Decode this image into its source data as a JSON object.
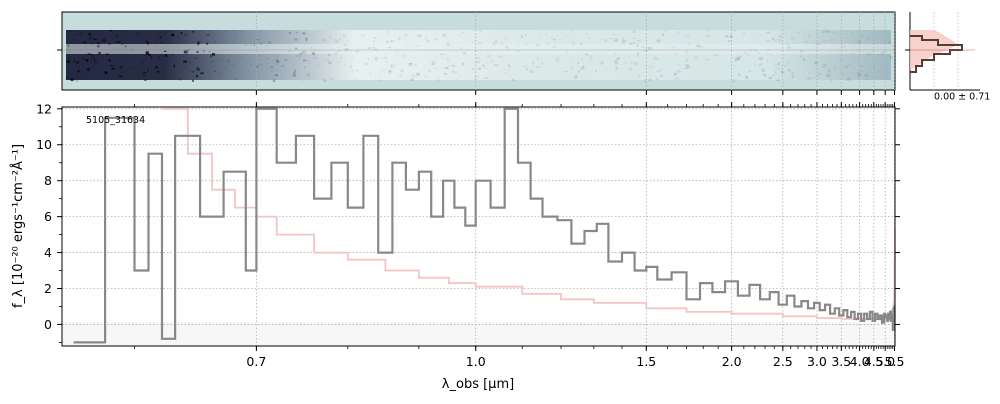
{
  "chart_data": {
    "type": "line",
    "object_id": "5105_31634",
    "ylabel": "f_λ [10⁻²⁰ ergs⁻¹cm⁻²Å⁻¹]",
    "xlabel": "λ_obs [μm]",
    "ylim": [
      -1.2,
      12.1
    ],
    "xlim": [
      0.553,
      5.53
    ],
    "x_ticks": [
      {
        "value": 0.7,
        "label": "0.7"
      },
      {
        "value": 1.0,
        "label": "1.0"
      },
      {
        "value": 1.5,
        "label": "1.5"
      },
      {
        "value": 2.0,
        "label": "2.0"
      },
      {
        "value": 2.5,
        "label": "2.5"
      },
      {
        "value": 3.0,
        "label": "3.0"
      },
      {
        "value": 3.5,
        "label": "3.5"
      },
      {
        "value": 4.0,
        "label": "4.0"
      },
      {
        "value": 4.5,
        "label": "4.5"
      },
      {
        "value": 5.0,
        "label": "5.0"
      },
      {
        "value": 5.5,
        "label": "5.5"
      }
    ],
    "y_ticks": [
      {
        "value": 0,
        "label": "0"
      },
      {
        "value": 2,
        "label": "2"
      },
      {
        "value": 4,
        "label": "4"
      },
      {
        "value": 6,
        "label": "6"
      },
      {
        "value": 8,
        "label": "8"
      },
      {
        "value": 10,
        "label": "10"
      },
      {
        "value": 12,
        "label": "12"
      }
    ],
    "grid": true,
    "series": [
      {
        "style": "step",
        "color": "#888888",
        "points": [
          [
            0.56,
            -1.0
          ],
          [
            0.58,
            11.5
          ],
          [
            0.6,
            3.0
          ],
          [
            0.61,
            9.5
          ],
          [
            0.62,
            -0.8
          ],
          [
            0.63,
            10.5
          ],
          [
            0.65,
            6.0
          ],
          [
            0.67,
            8.5
          ],
          [
            0.69,
            3.0
          ],
          [
            0.7,
            12.0
          ],
          [
            0.72,
            9.0
          ],
          [
            0.74,
            10.5
          ],
          [
            0.76,
            7.0
          ],
          [
            0.78,
            9.0
          ],
          [
            0.8,
            6.5
          ],
          [
            0.82,
            10.5
          ],
          [
            0.84,
            4.0
          ],
          [
            0.86,
            9.0
          ],
          [
            0.88,
            7.5
          ],
          [
            0.9,
            8.5
          ],
          [
            0.92,
            6.0
          ],
          [
            0.94,
            8.0
          ],
          [
            0.96,
            6.5
          ],
          [
            0.98,
            5.5
          ],
          [
            1.0,
            8.0
          ],
          [
            1.03,
            6.5
          ],
          [
            1.06,
            12.0
          ],
          [
            1.09,
            9.0
          ],
          [
            1.12,
            7.0
          ],
          [
            1.15,
            6.0
          ],
          [
            1.19,
            5.8
          ],
          [
            1.23,
            4.5
          ],
          [
            1.27,
            5.2
          ],
          [
            1.31,
            5.6
          ],
          [
            1.35,
            3.5
          ],
          [
            1.4,
            4.0
          ],
          [
            1.45,
            3.0
          ],
          [
            1.5,
            3.2
          ],
          [
            1.55,
            2.5
          ],
          [
            1.62,
            2.9
          ],
          [
            1.7,
            1.4
          ],
          [
            1.78,
            2.3
          ],
          [
            1.86,
            1.8
          ],
          [
            1.95,
            2.4
          ],
          [
            2.05,
            1.6
          ],
          [
            2.15,
            2.2
          ],
          [
            2.25,
            1.4
          ],
          [
            2.35,
            1.8
          ],
          [
            2.45,
            1.1
          ],
          [
            2.55,
            1.6
          ],
          [
            2.65,
            1.0
          ],
          [
            2.75,
            1.3
          ],
          [
            2.85,
            0.9
          ],
          [
            2.95,
            1.2
          ],
          [
            3.05,
            0.8
          ],
          [
            3.15,
            1.1
          ],
          [
            3.25,
            0.6
          ],
          [
            3.35,
            0.9
          ],
          [
            3.45,
            0.5
          ],
          [
            3.55,
            0.8
          ],
          [
            3.65,
            0.4
          ],
          [
            3.75,
            0.7
          ],
          [
            3.85,
            0.3
          ],
          [
            3.95,
            0.6
          ],
          [
            4.05,
            0.2
          ],
          [
            4.15,
            0.6
          ],
          [
            4.25,
            0.3
          ],
          [
            4.35,
            0.7
          ],
          [
            4.45,
            0.2
          ],
          [
            4.55,
            0.6
          ],
          [
            4.65,
            0.3
          ],
          [
            4.75,
            0.5
          ],
          [
            4.85,
            0.1
          ],
          [
            4.95,
            0.6
          ],
          [
            5.0,
            0.4
          ],
          [
            5.05,
            0.5
          ],
          [
            5.1,
            0.2
          ],
          [
            5.15,
            0.6
          ],
          [
            5.2,
            0.3
          ],
          [
            5.25,
            0.7
          ],
          [
            5.3,
            0.2
          ],
          [
            5.35,
            0.5
          ],
          [
            5.4,
            -0.3
          ],
          [
            5.45,
            0.9
          ],
          [
            5.48,
            0.2
          ],
          [
            5.5,
            1.0
          ]
        ]
      },
      {
        "style": "step",
        "color": "#f4c4c4",
        "points": [
          [
            0.62,
            12.0
          ],
          [
            0.64,
            9.5
          ],
          [
            0.66,
            7.5
          ],
          [
            0.68,
            6.5
          ],
          [
            0.7,
            6.0
          ],
          [
            0.72,
            5.0
          ],
          [
            0.76,
            4.0
          ],
          [
            0.8,
            3.6
          ],
          [
            0.85,
            3.0
          ],
          [
            0.9,
            2.6
          ],
          [
            0.95,
            2.3
          ],
          [
            1.0,
            2.1
          ],
          [
            1.1,
            1.7
          ],
          [
            1.2,
            1.4
          ],
          [
            1.3,
            1.2
          ],
          [
            1.5,
            0.9
          ],
          [
            1.7,
            0.7
          ],
          [
            2.0,
            0.6
          ],
          [
            2.5,
            0.45
          ],
          [
            3.0,
            0.35
          ],
          [
            3.5,
            0.3
          ],
          [
            4.0,
            0.3
          ],
          [
            4.5,
            0.3
          ],
          [
            5.0,
            0.35
          ],
          [
            5.2,
            0.5
          ],
          [
            5.35,
            0.8
          ],
          [
            5.45,
            1.2
          ],
          [
            5.48,
            2.0
          ],
          [
            5.5,
            3.5
          ],
          [
            5.52,
            5.3
          ]
        ]
      }
    ],
    "histogram_panel": {
      "label": "0.00 ± 0.71"
    }
  }
}
